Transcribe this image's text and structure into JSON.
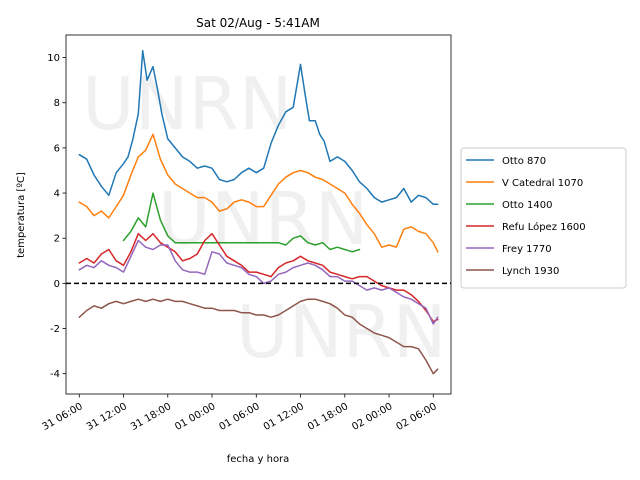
{
  "chart_data": {
    "type": "line",
    "title": "Sat 02/Aug - 5:41AM",
    "xlabel": "fecha y hora",
    "ylabel": "temperatura [ºC]",
    "x_unit": "hours from 31 06:00",
    "xlim": [
      -0.9,
      25.2
    ],
    "ylim": [
      -4.9,
      11.0
    ],
    "yticks": [
      -4,
      -2,
      0,
      2,
      4,
      6,
      8,
      10
    ],
    "xticks": [
      {
        "x": 0,
        "label": "31 06:00"
      },
      {
        "x": 3,
        "label": "31 12:00"
      },
      {
        "x": 6,
        "label": "31 18:00"
      },
      {
        "x": 9,
        "label": "01 00:00"
      },
      {
        "x": 12,
        "label": "01 06:00"
      },
      {
        "x": 15,
        "label": "01 12:00"
      },
      {
        "x": 18,
        "label": "01 18:00"
      },
      {
        "x": 21,
        "label": "02 00:00"
      },
      {
        "x": 24,
        "label": "02 06:00"
      }
    ],
    "reference_line": {
      "y": 0,
      "style": "dashed",
      "color": "#000000"
    },
    "watermark": "UNRN",
    "legend": "right",
    "series": [
      {
        "name": "Otto 870",
        "color": "#1f77b4",
        "x": [
          0,
          0.5,
          1,
          1.5,
          2,
          2.5,
          3,
          3.3,
          3.6,
          4,
          4.3,
          4.6,
          5,
          5.3,
          5.6,
          6,
          6.5,
          7,
          7.5,
          8,
          8.5,
          9,
          9.5,
          10,
          10.5,
          11,
          11.5,
          12,
          12.5,
          13,
          13.5,
          14,
          14.5,
          15,
          15.3,
          15.6,
          16,
          16.3,
          16.6,
          17,
          17.5,
          18,
          18.5,
          19,
          19.5,
          20,
          20.5,
          21,
          21.5,
          22,
          22.5,
          23,
          23.5,
          24,
          24.3
        ],
        "y": [
          5.7,
          5.5,
          4.8,
          4.3,
          3.9,
          4.9,
          5.3,
          5.6,
          6.3,
          7.5,
          10.3,
          9.0,
          9.6,
          8.6,
          7.5,
          6.4,
          6.0,
          5.6,
          5.4,
          5.1,
          5.2,
          5.1,
          4.6,
          4.5,
          4.6,
          4.9,
          5.1,
          4.9,
          5.1,
          6.2,
          7.0,
          7.6,
          7.8,
          9.7,
          8.4,
          7.2,
          7.2,
          6.6,
          6.3,
          5.4,
          5.6,
          5.4,
          5.0,
          4.5,
          4.2,
          3.8,
          3.6,
          3.7,
          3.8,
          4.2,
          3.6,
          3.9,
          3.8,
          3.5,
          3.5
        ]
      },
      {
        "name": "V Catedral 1070",
        "color": "#ff7f0e",
        "x": [
          0,
          0.5,
          1,
          1.5,
          2,
          2.5,
          3,
          3.5,
          4,
          4.5,
          5,
          5.5,
          6,
          6.5,
          7,
          7.5,
          8,
          8.5,
          9,
          9.5,
          10,
          10.5,
          11,
          11.5,
          12,
          12.5,
          13,
          13.5,
          14,
          14.5,
          15,
          15.5,
          16,
          16.5,
          17,
          17.5,
          18,
          18.5,
          19,
          19.5,
          20,
          20.5,
          21,
          21.5,
          22,
          22.5,
          23,
          23.5,
          24,
          24.3
        ],
        "y": [
          3.6,
          3.4,
          3.0,
          3.2,
          2.9,
          3.4,
          3.9,
          4.8,
          5.6,
          5.9,
          6.6,
          5.5,
          4.8,
          4.4,
          4.2,
          4.0,
          3.8,
          3.8,
          3.6,
          3.2,
          3.3,
          3.6,
          3.7,
          3.6,
          3.4,
          3.4,
          3.9,
          4.4,
          4.7,
          4.9,
          5.0,
          4.9,
          4.7,
          4.6,
          4.4,
          4.2,
          4.0,
          3.5,
          3.1,
          2.6,
          2.2,
          1.6,
          1.7,
          1.6,
          2.4,
          2.5,
          2.3,
          2.2,
          1.8,
          1.4
        ]
      },
      {
        "name": "Otto 1400",
        "color": "#2ca02c",
        "x": [
          3,
          3.5,
          4,
          4.5,
          5,
          5.5,
          6,
          6.5,
          7,
          7.5,
          8,
          8.5,
          9,
          9.5,
          10,
          10.5,
          11,
          11.5,
          12,
          12.5,
          13,
          13.5,
          14,
          14.5,
          15,
          15.5,
          16,
          16.5,
          17,
          17.5,
          18,
          18.5,
          19
        ],
        "y": [
          1.9,
          2.3,
          2.9,
          2.5,
          4.0,
          2.8,
          2.1,
          1.8,
          1.8,
          1.8,
          1.8,
          1.8,
          1.8,
          1.8,
          1.8,
          1.8,
          1.8,
          1.8,
          1.8,
          1.8,
          1.8,
          1.8,
          1.7,
          2.0,
          2.1,
          1.8,
          1.7,
          1.8,
          1.5,
          1.6,
          1.5,
          1.4,
          1.5
        ]
      },
      {
        "name": "Refu López 1600",
        "color": "#d62728",
        "x": [
          0,
          0.5,
          1,
          1.5,
          2,
          2.5,
          3,
          3.5,
          4,
          4.5,
          5,
          5.5,
          6,
          6.5,
          7,
          7.5,
          8,
          8.5,
          9,
          9.5,
          10,
          10.5,
          11,
          11.5,
          12,
          12.5,
          13,
          13.5,
          14,
          14.5,
          15,
          15.5,
          16,
          16.5,
          17,
          17.5,
          18,
          18.5,
          19,
          19.5,
          20,
          20.5,
          21,
          21.5,
          22,
          22.5,
          23,
          23.5,
          24,
          24.3
        ],
        "y": [
          0.9,
          1.1,
          0.9,
          1.3,
          1.5,
          1.0,
          0.8,
          1.4,
          2.2,
          1.9,
          2.2,
          1.8,
          1.6,
          1.4,
          1.0,
          1.1,
          1.3,
          1.9,
          2.2,
          1.7,
          1.2,
          1.0,
          0.8,
          0.5,
          0.5,
          0.4,
          0.3,
          0.7,
          0.9,
          1.0,
          1.2,
          1.0,
          0.9,
          0.8,
          0.5,
          0.4,
          0.3,
          0.2,
          0.3,
          0.3,
          0.1,
          -0.1,
          -0.2,
          -0.3,
          -0.3,
          -0.5,
          -0.8,
          -1.2,
          -1.7,
          -1.6
        ]
      },
      {
        "name": "Frey 1770",
        "color": "#9467bd",
        "x": [
          0,
          0.5,
          1,
          1.5,
          2,
          2.5,
          3,
          3.5,
          4,
          4.5,
          5,
          5.5,
          6,
          6.5,
          7,
          7.5,
          8,
          8.5,
          9,
          9.5,
          10,
          10.5,
          11,
          11.5,
          12,
          12.5,
          13,
          13.5,
          14,
          14.5,
          15,
          15.5,
          16,
          16.5,
          17,
          17.5,
          18,
          18.5,
          19,
          19.5,
          20,
          20.5,
          21,
          21.5,
          22,
          22.5,
          23,
          23.5,
          24,
          24.3
        ],
        "y": [
          0.6,
          0.8,
          0.7,
          1.0,
          0.8,
          0.7,
          0.5,
          1.2,
          1.9,
          1.6,
          1.5,
          1.7,
          1.7,
          1.0,
          0.6,
          0.5,
          0.5,
          0.4,
          1.4,
          1.3,
          0.9,
          0.8,
          0.7,
          0.4,
          0.3,
          0.0,
          0.1,
          0.4,
          0.5,
          0.7,
          0.8,
          0.9,
          0.8,
          0.6,
          0.3,
          0.3,
          0.1,
          0.1,
          -0.1,
          -0.3,
          -0.2,
          -0.3,
          -0.2,
          -0.4,
          -0.6,
          -0.7,
          -0.9,
          -1.1,
          -1.8,
          -1.5
        ]
      },
      {
        "name": "Lynch 1930",
        "color": "#8c564b",
        "x": [
          0,
          0.5,
          1,
          1.5,
          2,
          2.5,
          3,
          3.5,
          4,
          4.5,
          5,
          5.5,
          6,
          6.5,
          7,
          7.5,
          8,
          8.5,
          9,
          9.5,
          10,
          10.5,
          11,
          11.5,
          12,
          12.5,
          13,
          13.5,
          14,
          14.5,
          15,
          15.5,
          16,
          16.5,
          17,
          17.5,
          18,
          18.5,
          19,
          19.5,
          20,
          20.5,
          21,
          21.5,
          22,
          22.5,
          23,
          23.5,
          24,
          24.3
        ],
        "y": [
          -1.5,
          -1.2,
          -1.0,
          -1.1,
          -0.9,
          -0.8,
          -0.9,
          -0.8,
          -0.7,
          -0.8,
          -0.7,
          -0.8,
          -0.7,
          -0.8,
          -0.8,
          -0.9,
          -1.0,
          -1.1,
          -1.1,
          -1.2,
          -1.2,
          -1.2,
          -1.3,
          -1.3,
          -1.4,
          -1.4,
          -1.5,
          -1.4,
          -1.2,
          -1.0,
          -0.8,
          -0.7,
          -0.7,
          -0.8,
          -0.9,
          -1.1,
          -1.4,
          -1.5,
          -1.8,
          -2.0,
          -2.2,
          -2.3,
          -2.4,
          -2.6,
          -2.8,
          -2.8,
          -2.9,
          -3.4,
          -4.0,
          -3.8
        ]
      }
    ]
  }
}
